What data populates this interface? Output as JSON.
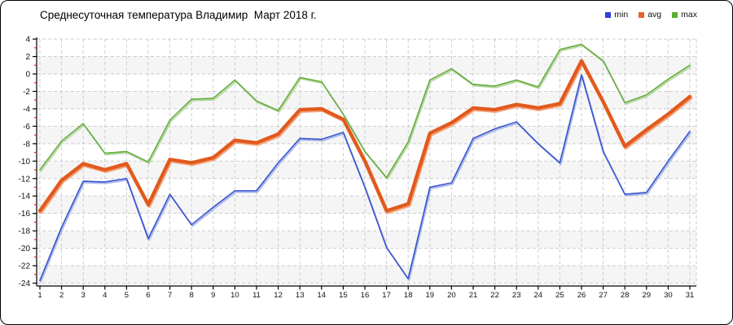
{
  "header": {
    "title": "Среднесуточная температура Владимир  Март 2018 г."
  },
  "legend": [
    {
      "label": "min",
      "color": "#2f3ed6"
    },
    {
      "label": "avg",
      "color": "#e8632a"
    },
    {
      "label": "max",
      "color": "#56b02c"
    }
  ],
  "chart_data": {
    "type": "line",
    "title": "Среднесуточная температура Владимир  Март 2018 г.",
    "xlabel": "",
    "ylabel": "",
    "x": [
      1,
      2,
      3,
      4,
      5,
      6,
      7,
      8,
      9,
      10,
      11,
      12,
      13,
      14,
      15,
      16,
      17,
      18,
      19,
      20,
      21,
      22,
      23,
      24,
      25,
      26,
      27,
      28,
      29,
      30,
      31
    ],
    "ylim": [
      -24,
      4
    ],
    "ytick_step": 2,
    "grid": true,
    "legend_position": "top-right",
    "series": [
      {
        "name": "min",
        "color": "#3c57cd",
        "shadow_color": "#a9b8ec",
        "width": 1.7,
        "values": [
          -23.7,
          -17.6,
          -12.3,
          -12.4,
          -12.0,
          -18.9,
          -13.8,
          -17.3,
          -15.3,
          -13.4,
          -13.4,
          -10.2,
          -7.4,
          -7.5,
          -6.7,
          -13.0,
          -19.9,
          -23.5,
          -13.0,
          -12.5,
          -7.4,
          -6.3,
          -5.5,
          -8.0,
          -10.2,
          -0.1,
          -8.9,
          -13.8,
          -13.6,
          -10.0,
          -6.6
        ]
      },
      {
        "name": "avg",
        "color": "#e2591d",
        "shadow_color": "#f2a47c",
        "width": 4.3,
        "values": [
          -15.7,
          -12.2,
          -10.3,
          -11.0,
          -10.3,
          -15.0,
          -9.8,
          -10.2,
          -9.6,
          -7.6,
          -7.9,
          -6.9,
          -4.1,
          -4.0,
          -5.2,
          -10.0,
          -15.7,
          -14.9,
          -6.8,
          -5.6,
          -3.9,
          -4.1,
          -3.5,
          -3.9,
          -3.4,
          1.5,
          -3.2,
          -8.3,
          -6.4,
          -4.6,
          -2.6
        ]
      },
      {
        "name": "max",
        "color": "#69ad43",
        "shadow_color": "#b5d8a0",
        "width": 1.7,
        "values": [
          -11.0,
          -7.7,
          -5.7,
          -9.1,
          -8.9,
          -10.1,
          -5.3,
          -2.9,
          -2.8,
          -0.7,
          -3.1,
          -4.2,
          -0.4,
          -0.9,
          -4.6,
          -8.9,
          -11.9,
          -7.8,
          -0.7,
          0.6,
          -1.2,
          -1.4,
          -0.7,
          -1.5,
          2.8,
          3.4,
          1.5,
          -3.3,
          -2.4,
          -0.6,
          1.0
        ]
      }
    ],
    "style": {
      "grid_color": "#cdcdcd",
      "band_color": "#f5f5f5",
      "axis_color": "#000000",
      "minor_tick_color": "#dd2222",
      "tick_label_color": "#111111"
    }
  }
}
